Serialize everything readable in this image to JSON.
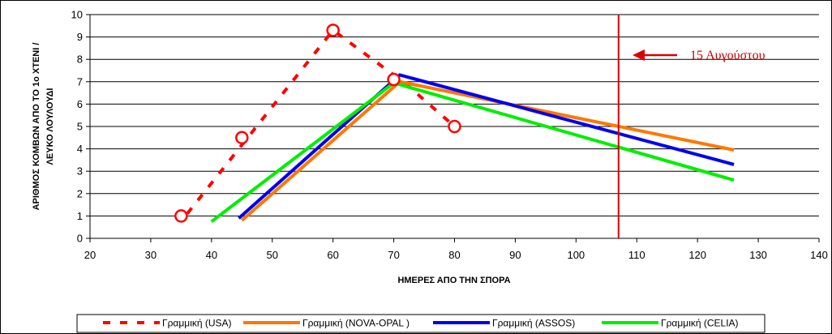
{
  "chart_data": {
    "type": "line",
    "xlabel": "ΗΜΕΡΕΣ ΑΠΟ ΤΗΝ ΣΠΟΡΑ",
    "ylabel_line1": "ΑΡΙΘΜΟΣ ΚΟΜΒΩΝ ΑΠΟ ΤΟ 1ο ΧΤΕΝΙ  /",
    "ylabel_line2": "ΛΕΥΚΟ ΛΟΥΛΟΥΔΙ",
    "xlim": [
      20,
      140
    ],
    "ylim": [
      0,
      10
    ],
    "x_ticks": [
      20,
      30,
      40,
      50,
      60,
      70,
      80,
      90,
      100,
      110,
      120,
      130,
      140
    ],
    "y_ticks": [
      0,
      1,
      2,
      3,
      4,
      5,
      6,
      7,
      8,
      9,
      10
    ],
    "grid": "horizontal",
    "legend_position": "bottom",
    "series": [
      {
        "name": "Γραμμική (USA)",
        "color": "#ff0000",
        "style": "dashed",
        "line": [
          [
            36,
            1.1
          ],
          [
            60,
            9.3
          ],
          [
            72,
            6.9
          ],
          [
            80,
            5.0
          ]
        ],
        "markers": [
          [
            35,
            1.0
          ],
          [
            45,
            4.5
          ],
          [
            60,
            9.3
          ],
          [
            70,
            7.1
          ],
          [
            80,
            5.0
          ]
        ]
      },
      {
        "name": "Γραμμική (NOVA-OPAL )",
        "color": "#ff7700",
        "style": "solid",
        "line": [
          [
            45,
            0.8
          ],
          [
            71,
            7.0
          ],
          [
            126,
            3.95
          ]
        ]
      },
      {
        "name": "Γραμμική (ASSOS)",
        "color": "#0000ee",
        "style": "solid",
        "line": [
          [
            44.5,
            0.9
          ],
          [
            71,
            7.3
          ],
          [
            126,
            3.3
          ]
        ]
      },
      {
        "name": "Γραμμική (CELIA)",
        "color": "#00ee00",
        "style": "solid",
        "line": [
          [
            40,
            0.75
          ],
          [
            70,
            6.95
          ],
          [
            126,
            2.6
          ]
        ]
      }
    ],
    "vline": {
      "x": 107,
      "color": "#dd0000"
    },
    "annotation": {
      "text": "15 Αυγούστου",
      "color": "#dd0000",
      "arrow": "left"
    }
  }
}
